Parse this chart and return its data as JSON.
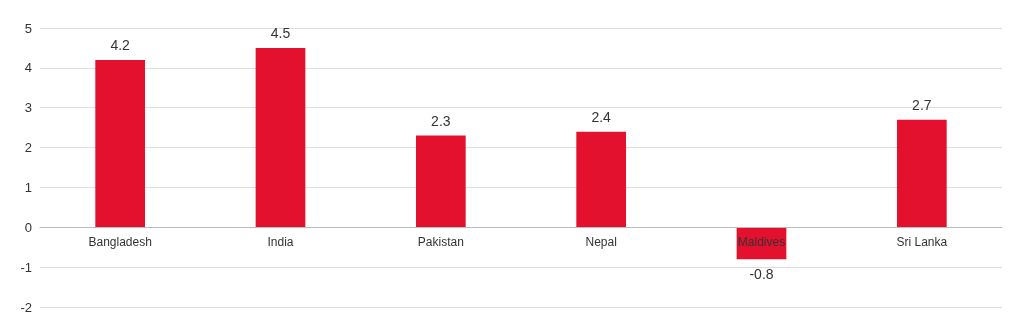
{
  "chart_data": {
    "type": "bar",
    "categories": [
      "Bangladesh",
      "India",
      "Pakistan",
      "Nepal",
      "Maldives",
      "Sri Lanka"
    ],
    "values": [
      4.2,
      4.5,
      2.3,
      2.4,
      -0.8,
      2.7
    ],
    "color": "#e4112e",
    "ylim": [
      -2,
      5
    ],
    "yticks": [
      -2,
      -1,
      0,
      1,
      2,
      3,
      4,
      5
    ],
    "grid": "y",
    "data_labels": true
  }
}
